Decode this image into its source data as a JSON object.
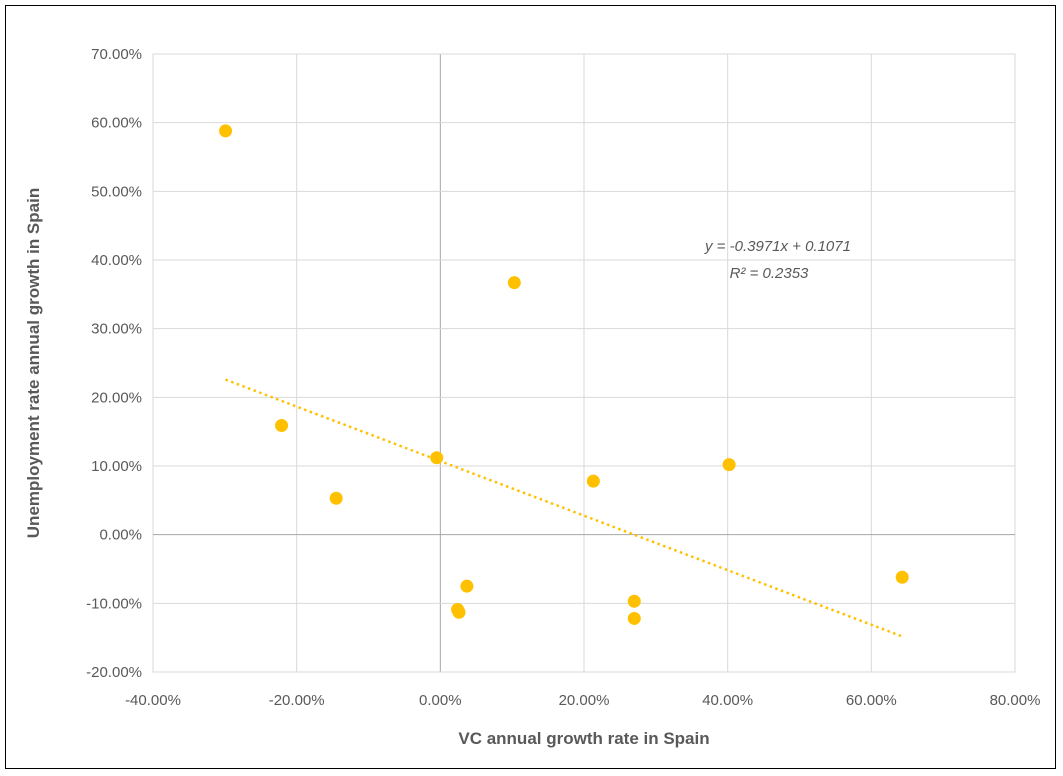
{
  "chart_data": {
    "type": "scatter",
    "xlabel": "VC annual growth rate in Spain",
    "ylabel": "Unemployment rate annual growth in Spain",
    "xlim": [
      -0.4,
      0.8
    ],
    "ylim": [
      -0.2,
      0.7
    ],
    "x_ticks": [
      -0.4,
      -0.2,
      0.0,
      0.2,
      0.4,
      0.6,
      0.8
    ],
    "y_ticks": [
      -0.2,
      -0.1,
      0.0,
      0.1,
      0.2,
      0.3,
      0.4,
      0.5,
      0.6,
      0.7
    ],
    "x_tick_labels": [
      "-40.00%",
      "-20.00%",
      "0.00%",
      "20.00%",
      "40.00%",
      "60.00%",
      "80.00%"
    ],
    "y_tick_labels": [
      "-20.00%",
      "-10.00%",
      "0.00%",
      "10.00%",
      "20.00%",
      "30.00%",
      "40.00%",
      "50.00%",
      "60.00%",
      "70.00%"
    ],
    "grid": true,
    "points": [
      {
        "x": -0.299,
        "y": 0.588
      },
      {
        "x": -0.221,
        "y": 0.159
      },
      {
        "x": -0.145,
        "y": 0.053
      },
      {
        "x": -0.005,
        "y": 0.112
      },
      {
        "x": 0.024,
        "y": -0.109
      },
      {
        "x": 0.026,
        "y": -0.113
      },
      {
        "x": 0.037,
        "y": -0.075
      },
      {
        "x": 0.103,
        "y": 0.367
      },
      {
        "x": 0.213,
        "y": 0.078
      },
      {
        "x": 0.27,
        "y": -0.097
      },
      {
        "x": 0.27,
        "y": -0.122
      },
      {
        "x": 0.402,
        "y": 0.102
      },
      {
        "x": 0.643,
        "y": -0.062
      }
    ],
    "trendline": {
      "type": "linear",
      "slope": -0.3971,
      "intercept": 0.1071,
      "x_range": [
        -0.299,
        0.643
      ],
      "equation_label": "y = -0.3971x + 0.1071",
      "r2_label": "R² = 0.2353"
    },
    "colors": {
      "points": "#FFC000",
      "trendline": "#FFC000",
      "grid": "#D9D9D9",
      "zero_axis": "#A6A6A6",
      "text": "#595959"
    }
  }
}
